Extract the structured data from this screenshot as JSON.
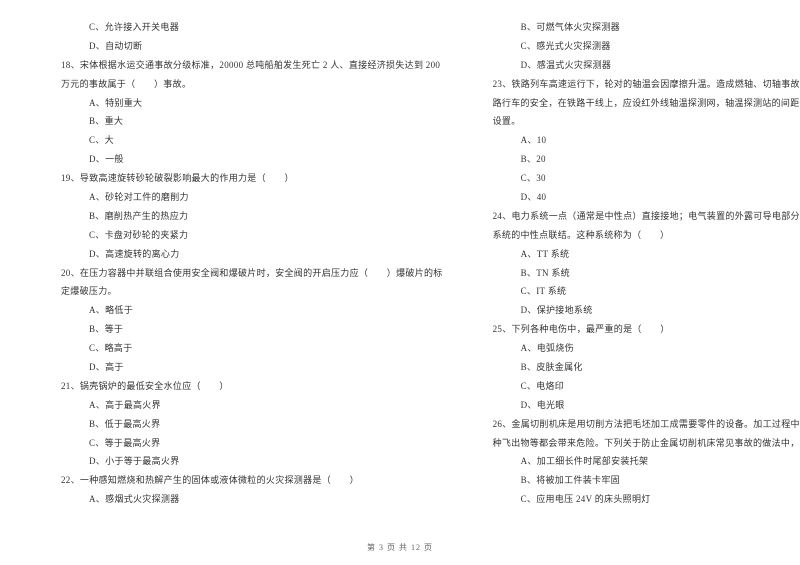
{
  "left_column": {
    "lines": [
      {
        "text": "C、允许接入开关电器",
        "indent": "indent1"
      },
      {
        "text": "D、自动切断",
        "indent": "indent1"
      },
      {
        "text": "18、宋体根据水运交通事故分级标准，20000 总吨船舶发生死亡 2 人、直接经济损失达到 200",
        "indent": "indent2"
      },
      {
        "text": "万元的事故属于（　　）事故。",
        "indent": "indent2"
      },
      {
        "text": "A、特别重大",
        "indent": "indent1"
      },
      {
        "text": "B、重大",
        "indent": "indent1"
      },
      {
        "text": "C、大",
        "indent": "indent1"
      },
      {
        "text": "D、一般",
        "indent": "indent1"
      },
      {
        "text": "19、导致高速旋转砂轮破裂影响最大的作用力是（　　）",
        "indent": "indent2"
      },
      {
        "text": "A、砂轮对工件的磨削力",
        "indent": "indent1"
      },
      {
        "text": "B、磨削热产生的热应力",
        "indent": "indent1"
      },
      {
        "text": "C、卡盘对砂轮的夹紧力",
        "indent": "indent1"
      },
      {
        "text": "D、高速旋转的离心力",
        "indent": "indent1"
      },
      {
        "text": "20、在压力容器中并联组合使用安全阀和爆破片时，安全阀的开启压力应（　　）爆破片的标",
        "indent": "indent2"
      },
      {
        "text": "定爆破压力。",
        "indent": "indent2"
      },
      {
        "text": "A、略低于",
        "indent": "indent1"
      },
      {
        "text": "B、等于",
        "indent": "indent1"
      },
      {
        "text": "C、略高于",
        "indent": "indent1"
      },
      {
        "text": "D、高于",
        "indent": "indent1"
      },
      {
        "text": "21、锅壳锅炉的最低安全水位应（　　）",
        "indent": "indent2"
      },
      {
        "text": "A、高于最高火界",
        "indent": "indent1"
      },
      {
        "text": "B、低于最高火界",
        "indent": "indent1"
      },
      {
        "text": "C、等于最高火界",
        "indent": "indent1"
      },
      {
        "text": "D、小于等于最高火界",
        "indent": "indent1"
      },
      {
        "text": "22、一种感知燃烧和热解产生的固体或液体微粒的火灾探测器是（　　）",
        "indent": "indent2"
      },
      {
        "text": "A、感烟式火灾探测器",
        "indent": "indent1"
      }
    ]
  },
  "right_column": {
    "lines": [
      {
        "text": "B、可燃气体火灾探测器",
        "indent": "indent1"
      },
      {
        "text": "C、感光式火灾探测器",
        "indent": "indent1"
      },
      {
        "text": "D、感温式火灾探测器",
        "indent": "indent1"
      },
      {
        "text": "23、铁路列车高速运行下，轮对的轴温会因摩擦升温。造成燃轴、切轴事故的发生。为保证铁",
        "indent": "indent2"
      },
      {
        "text": "路行车的安全，在铁路干线上，应设红外线轴温探测网，轴温探测站的间距一般按（　　）km",
        "indent": "indent2"
      },
      {
        "text": "设置。",
        "indent": "indent2"
      },
      {
        "text": "A、10",
        "indent": "indent1"
      },
      {
        "text": "B、20",
        "indent": "indent1"
      },
      {
        "text": "C、30",
        "indent": "indent1"
      },
      {
        "text": "D、40",
        "indent": "indent1"
      },
      {
        "text": "24、电力系统一点（通常是中性点）直接接地；电气装置的外露可导电部分通过保护线与电力",
        "indent": "indent2"
      },
      {
        "text": "系统的中性点联结。这种系统称为（　　）",
        "indent": "indent2"
      },
      {
        "text": "A、TT 系统",
        "indent": "indent1"
      },
      {
        "text": "B、TN 系统",
        "indent": "indent1"
      },
      {
        "text": "C、IT 系统",
        "indent": "indent1"
      },
      {
        "text": "D、保护接地系统",
        "indent": "indent1"
      },
      {
        "text": "25、下列各种电伤中，最严重的是（　　）",
        "indent": "indent2"
      },
      {
        "text": "A、电弧烧伤",
        "indent": "indent1"
      },
      {
        "text": "B、皮肤金属化",
        "indent": "indent1"
      },
      {
        "text": "C、电烙印",
        "indent": "indent1"
      },
      {
        "text": "D、电光眼",
        "indent": "indent1"
      },
      {
        "text": "26、金属切削机床是用切削方法把毛坯加工成需要零件的设备。加工过程中，各运动部件、各",
        "indent": "indent2"
      },
      {
        "text": "种飞出物等都会带来危险。下列关于防止金属切削机床常见事故的做法中，错误的是（　　）",
        "indent": "indent2"
      },
      {
        "text": "A、加工细长件时尾部安装托架",
        "indent": "indent1"
      },
      {
        "text": "B、将被加工件装卡牢固",
        "indent": "indent1"
      },
      {
        "text": "C、应用电压 24V 的床头照明灯",
        "indent": "indent1"
      }
    ]
  },
  "footer": {
    "text": "第 3 页 共 12 页"
  },
  "colors": {
    "background": "#ffffff",
    "text": "#333333",
    "footer_text": "#666666"
  },
  "typography": {
    "body_fontsize": 9,
    "footer_fontsize": 8,
    "line_height": 2.1,
    "font_family": "SimSun"
  }
}
